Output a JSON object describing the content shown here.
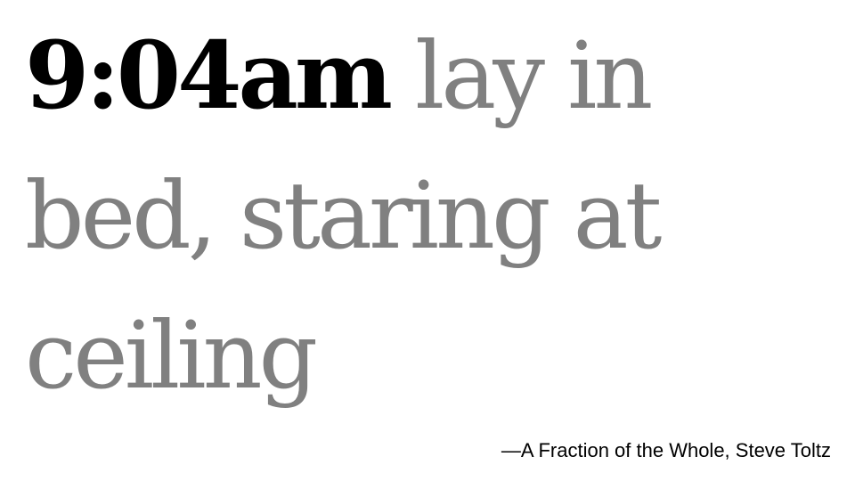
{
  "quote": {
    "time": "9:04am",
    "text": "lay in bed, staring at ceiling"
  },
  "attribution": "—A Fraction of the Whole, Steve Toltz",
  "colors": {
    "time": "#000000",
    "text": "#808080",
    "background": "#ffffff"
  }
}
